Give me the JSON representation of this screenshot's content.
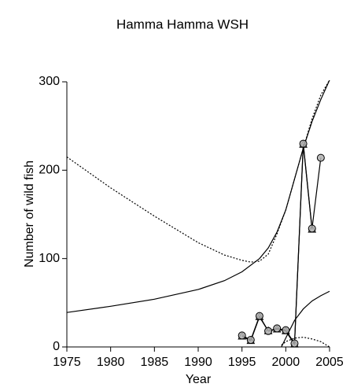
{
  "chart_data": {
    "type": "line",
    "title": "Hamma Hamma WSH",
    "xlabel": "Year",
    "ylabel": "Number of wild fish",
    "xlim": [
      1975,
      2005
    ],
    "xticks": [
      1975,
      1980,
      1985,
      1990,
      1995,
      2000,
      2005
    ],
    "ylim": [
      0,
      300
    ],
    "yticks": [
      0,
      100,
      200,
      300
    ],
    "series": [
      {
        "color": "#000000",
        "style": "solid",
        "marker": "none",
        "x": [
          1975,
          1980,
          1985,
          1990,
          1993,
          1995,
          1997,
          1998,
          1999,
          2000,
          2001,
          2002,
          2003,
          2004,
          2005
        ],
        "values": [
          39,
          46,
          54,
          65,
          75,
          85,
          100,
          112,
          130,
          155,
          190,
          225,
          255,
          280,
          302
        ]
      },
      {
        "color": "#000000",
        "style": "dotted",
        "marker": "none",
        "x": [
          1975,
          1980,
          1985,
          1990,
          1993,
          1995,
          1996,
          1997,
          1998,
          1999,
          2000,
          2001,
          2002,
          2003,
          2004,
          2005
        ],
        "values": [
          215,
          180,
          148,
          118,
          104,
          98,
          96,
          97,
          105,
          128,
          155,
          190,
          225,
          258,
          285,
          302
        ]
      },
      {
        "color": "#000000",
        "style": "solid",
        "marker": "none",
        "x": [
          1999.5,
          2000,
          2001,
          2002,
          2003,
          2004,
          2005
        ],
        "values": [
          0,
          10,
          30,
          43,
          52,
          58,
          63
        ]
      },
      {
        "color": "#000000",
        "style": "dotted",
        "marker": "none",
        "x": [
          1999.5,
          2000,
          2001,
          2002,
          2003,
          2004,
          2005
        ],
        "values": [
          2,
          6,
          10,
          11,
          9,
          6,
          0
        ]
      },
      {
        "color": "#000000",
        "style": "solid",
        "marker": "triangle",
        "x": [
          1995,
          1996,
          1997,
          1998,
          1999,
          2000,
          2001,
          2002,
          2003
        ],
        "values": [
          12,
          7,
          34,
          18,
          20,
          18,
          3,
          229,
          133
        ]
      },
      {
        "color": "#000000",
        "fill": "#b0b0b0",
        "style": "solid",
        "marker": "circle",
        "x": [
          1995,
          1996,
          1997,
          1998,
          1999,
          2000,
          2001,
          2002,
          2003,
          2004
        ],
        "values": [
          13,
          8,
          35,
          18,
          21,
          19,
          4,
          230,
          134,
          214
        ]
      }
    ]
  }
}
